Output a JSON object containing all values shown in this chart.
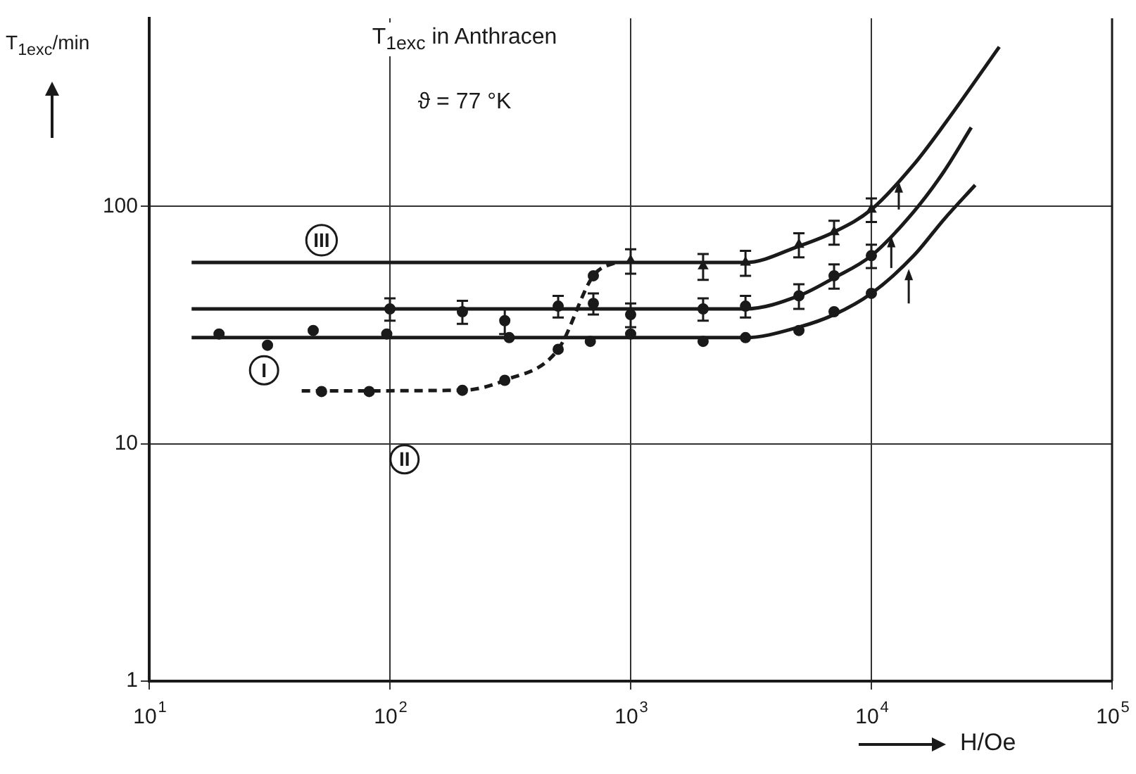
{
  "chart_data": {
    "type": "scatter",
    "title": "T$_{1exc}$ in Anthracen",
    "subtitle": "ϑ = 77 °K",
    "xlabel": "H/Oe",
    "ylabel": "T$_{1exc}$/min",
    "log": "xy",
    "grid": true,
    "legend": false,
    "xlim": [
      10,
      100000
    ],
    "ylim": [
      1,
      620
    ],
    "xticks": [
      {
        "value": 10,
        "label": "10$^{1}$"
      },
      {
        "value": 100,
        "label": "10$^{2}$"
      },
      {
        "value": 1000,
        "label": "10$^{3}$"
      },
      {
        "value": 10000,
        "label": "10$^{4}$"
      },
      {
        "value": 100000,
        "label": "10$^{5}$"
      }
    ],
    "yticks": [
      1,
      10,
      100
    ],
    "annotations": [
      {
        "text": "I",
        "x": 30,
        "y": 20.4
      },
      {
        "text": "II",
        "x": 115,
        "y": 8.6
      },
      {
        "text": "III",
        "x": 52,
        "y": 72
      }
    ],
    "series": [
      {
        "type": "scatter",
        "marker": "circle",
        "color": "#1a1a1a",
        "x": [
          19.5,
          31,
          48,
          97,
          313,
          680,
          1000,
          2000,
          3000,
          5000,
          7000,
          10000
        ],
        "values": [
          29,
          26,
          30,
          29,
          28,
          27,
          29,
          27,
          28,
          30,
          36,
          43
        ]
      },
      {
        "type": "line",
        "line_style": "solid",
        "color": "#1a1a1a",
        "x": [
          15,
          3000,
          5000,
          7000,
          10000,
          15000,
          20000,
          27000
        ],
        "values": [
          28,
          28,
          31,
          35,
          43,
          62,
          88,
          123
        ]
      },
      {
        "type": "scatter",
        "marker": "circle",
        "color": "#1a1a1a",
        "x": [
          100,
          200,
          300,
          500,
          700,
          1000,
          2000,
          3000,
          5000,
          7000,
          10000
        ],
        "values": [
          37,
          36,
          33,
          38,
          39,
          35,
          37,
          38,
          42,
          51,
          62
        ],
        "errors": [
          4,
          4,
          4,
          4,
          4,
          4,
          4,
          4,
          5,
          6,
          7
        ]
      },
      {
        "type": "line",
        "line_style": "solid",
        "color": "#1a1a1a",
        "x": [
          15,
          3000,
          5000,
          7000,
          10000,
          15000,
          20000,
          26000
        ],
        "values": [
          37,
          37,
          42,
          50,
          62,
          95,
          140,
          215
        ]
      },
      {
        "type": "scatter",
        "marker": "triangle",
        "color": "#1a1a1a",
        "x": [
          1000,
          2000,
          3000,
          5000,
          7000,
          10000
        ],
        "values": [
          59,
          56,
          58,
          69,
          78,
          97
        ],
        "errors": [
          7,
          7,
          7,
          8,
          9,
          11
        ]
      },
      {
        "type": "line",
        "line_style": "solid",
        "color": "#1a1a1a",
        "x": [
          15,
          1000,
          3000,
          5000,
          7000,
          10000,
          15000,
          20000,
          34000
        ],
        "values": [
          58,
          58,
          58,
          68,
          78,
          97,
          150,
          220,
          470
        ]
      },
      {
        "type": "scatter",
        "marker": "circle",
        "color": "#1a1a1a",
        "x": [
          52,
          82,
          200,
          300,
          500,
          700
        ],
        "values": [
          16.6,
          16.6,
          16.8,
          18.5,
          25,
          51
        ]
      },
      {
        "type": "line",
        "line_style": "dashed",
        "color": "#1a1a1a",
        "x": [
          43,
          200,
          300,
          500,
          700,
          900
        ],
        "values": [
          16.7,
          16.8,
          18.5,
          25,
          51,
          59
        ]
      }
    ]
  }
}
